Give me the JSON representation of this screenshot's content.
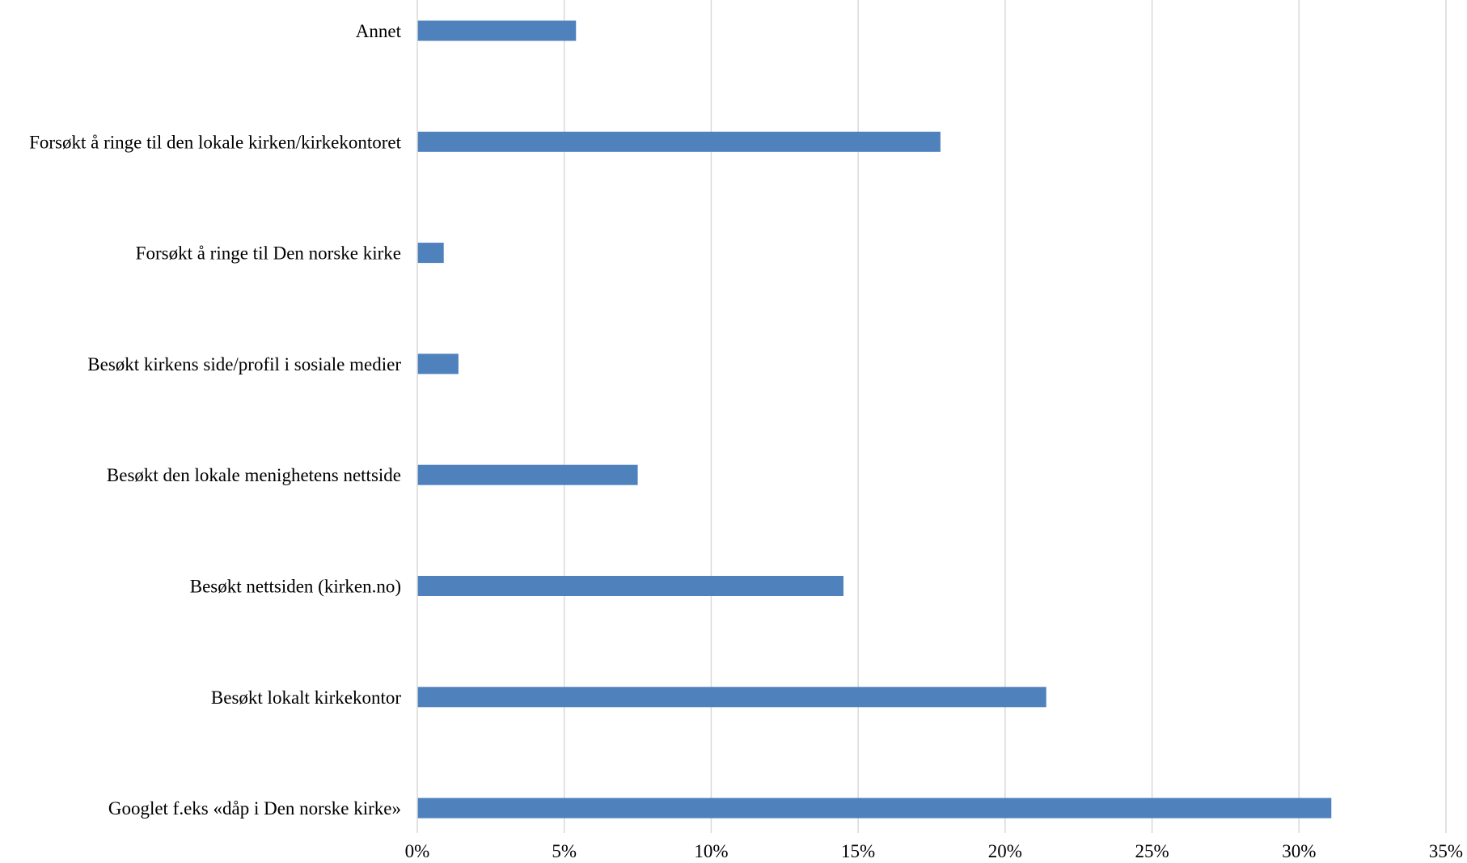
{
  "chart_data": {
    "type": "bar",
    "orientation": "horizontal",
    "categories": [
      "Annet",
      "Forsøkt å ringe til den lokale kirken/kirkekontoret",
      "Forsøkt å ringe til Den norske kirke",
      "Besøkt kirkens side/profil i sosiale medier",
      "Besøkt den lokale menighetens nettside",
      "Besøkt nettsiden (kirken.no)",
      "Besøkt lokalt kirkekontor",
      "Googlet f.eks «dåp i Den norske kirke»"
    ],
    "series": [
      {
        "values": [
          5.4,
          17.8,
          0.9,
          1.4,
          7.5,
          14.5,
          21.4,
          31.1
        ],
        "color": "#4f81bd"
      }
    ],
    "xlim": [
      0,
      35
    ],
    "x_ticks": [
      "0%",
      "5%",
      "10%",
      "15%",
      "20%",
      "25%",
      "30%",
      "35%"
    ],
    "value_format": "percent",
    "grid": "vertical",
    "grid_color": "#d9d9d9",
    "legend": "none",
    "title": "",
    "xlabel": "",
    "ylabel": ""
  }
}
